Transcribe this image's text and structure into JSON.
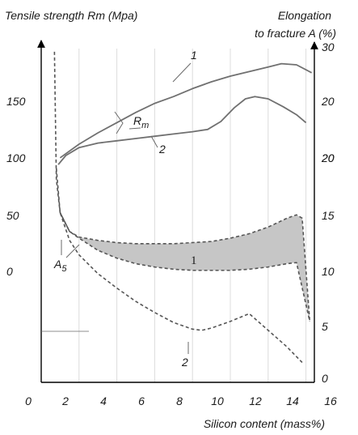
{
  "chart_data": {
    "type": "line",
    "x_axis": {
      "label": "Silicon content (mass%)",
      "range": [
        0,
        16
      ],
      "ticks": [
        "0",
        "2",
        "4",
        "6",
        "8",
        "10",
        "12",
        "14",
        "16"
      ]
    },
    "y_left": {
      "label": "Tensile strength Rm (Mpa)",
      "range": [
        -100,
        200
      ],
      "ticks": [
        "0",
        "50",
        "100",
        "150"
      ]
    },
    "y_right": {
      "label_line1": "Elongation",
      "label_line2": "to fracture A (%)",
      "range": [
        0,
        30
      ],
      "ticks": [
        "0",
        "5",
        "10",
        "15",
        "20",
        "20",
        "20",
        "30"
      ]
    },
    "grid": "vertical",
    "series": [
      {
        "axis": "left",
        "style": "solid",
        "color": "#707070",
        "x": [
          1.0,
          2.0,
          3.0,
          4.0,
          5.0,
          6.0,
          7.0,
          8.0,
          9.0,
          10.0,
          11.0,
          12.0,
          12.7,
          13.5,
          14.3
        ],
        "y": [
          98,
          110,
          120,
          129,
          138,
          146,
          152,
          159,
          165,
          170,
          174,
          178,
          181,
          180,
          173
        ]
      },
      {
        "axis": "left",
        "style": "solid",
        "color": "#707070",
        "x": [
          0.9,
          1.3,
          2.0,
          3.0,
          4.0,
          5.0,
          6.0,
          7.0,
          8.0,
          8.8,
          9.5,
          10.2,
          10.8,
          11.3,
          12.0,
          12.8,
          13.5,
          14.0
        ],
        "y": [
          92,
          100,
          107,
          111,
          113,
          115,
          117,
          119,
          121,
          123,
          130,
          142,
          150,
          152,
          150,
          143,
          136,
          129
        ]
      },
      {
        "axis": "right",
        "style": "dashed",
        "color": "#555555",
        "x": [
          0.7,
          0.8,
          1.0,
          1.5,
          2.0,
          3.0,
          4.0,
          5.0,
          6.0,
          7.0,
          8.0,
          9.0,
          10.0,
          11.0,
          12.0,
          13.0,
          13.5,
          13.8,
          14.2
        ],
        "y": [
          29.5,
          18,
          15,
          13.3,
          12.8,
          12.5,
          12.3,
          12.2,
          12.2,
          12.2,
          12.3,
          12.4,
          12.7,
          13.1,
          13.7,
          14.5,
          14.8,
          14.5,
          5.2
        ]
      },
      {
        "axis": "right",
        "style": "dashed",
        "color": "#555555",
        "x": [
          1.0,
          1.5,
          2.0,
          3.0,
          4.0,
          5.0,
          6.0,
          7.0,
          8.0,
          9.0,
          10.0,
          11.0,
          12.0,
          13.0,
          13.5,
          14.2
        ],
        "y": [
          15,
          13.3,
          12.7,
          11.6,
          10.9,
          10.4,
          10.1,
          9.9,
          9.8,
          9.8,
          9.8,
          9.9,
          10.1,
          10.4,
          10.5,
          5.2
        ]
      },
      {
        "axis": "right",
        "style": "dashed",
        "color": "#555555",
        "x": [
          0.8,
          1.0,
          1.5,
          2.0,
          3.0,
          4.0,
          5.0,
          6.0,
          7.0,
          8.0,
          8.5,
          9.0,
          10.0,
          11.0,
          12.0,
          13.0,
          13.8
        ],
        "y": [
          19,
          15,
          12.5,
          11.2,
          9.5,
          8.2,
          7.0,
          6.0,
          5.1,
          4.5,
          4.4,
          4.6,
          5.2,
          5.9,
          4.4,
          2.9,
          1.5
        ]
      }
    ],
    "band": {
      "upper_series": 2,
      "lower_series": 3,
      "fill": "#c6c6c6"
    },
    "annotations": [
      {
        "text": "1",
        "style": "sans-italic"
      },
      {
        "text": "2",
        "style": "sans-italic"
      },
      {
        "text": "R",
        "subscript": "m",
        "style": "sans-italic"
      },
      {
        "text": "1",
        "style": "serif"
      },
      {
        "text": "A",
        "subscript": "5",
        "style": "sans-italic"
      },
      {
        "text": "2",
        "style": "sans-italic"
      }
    ]
  }
}
